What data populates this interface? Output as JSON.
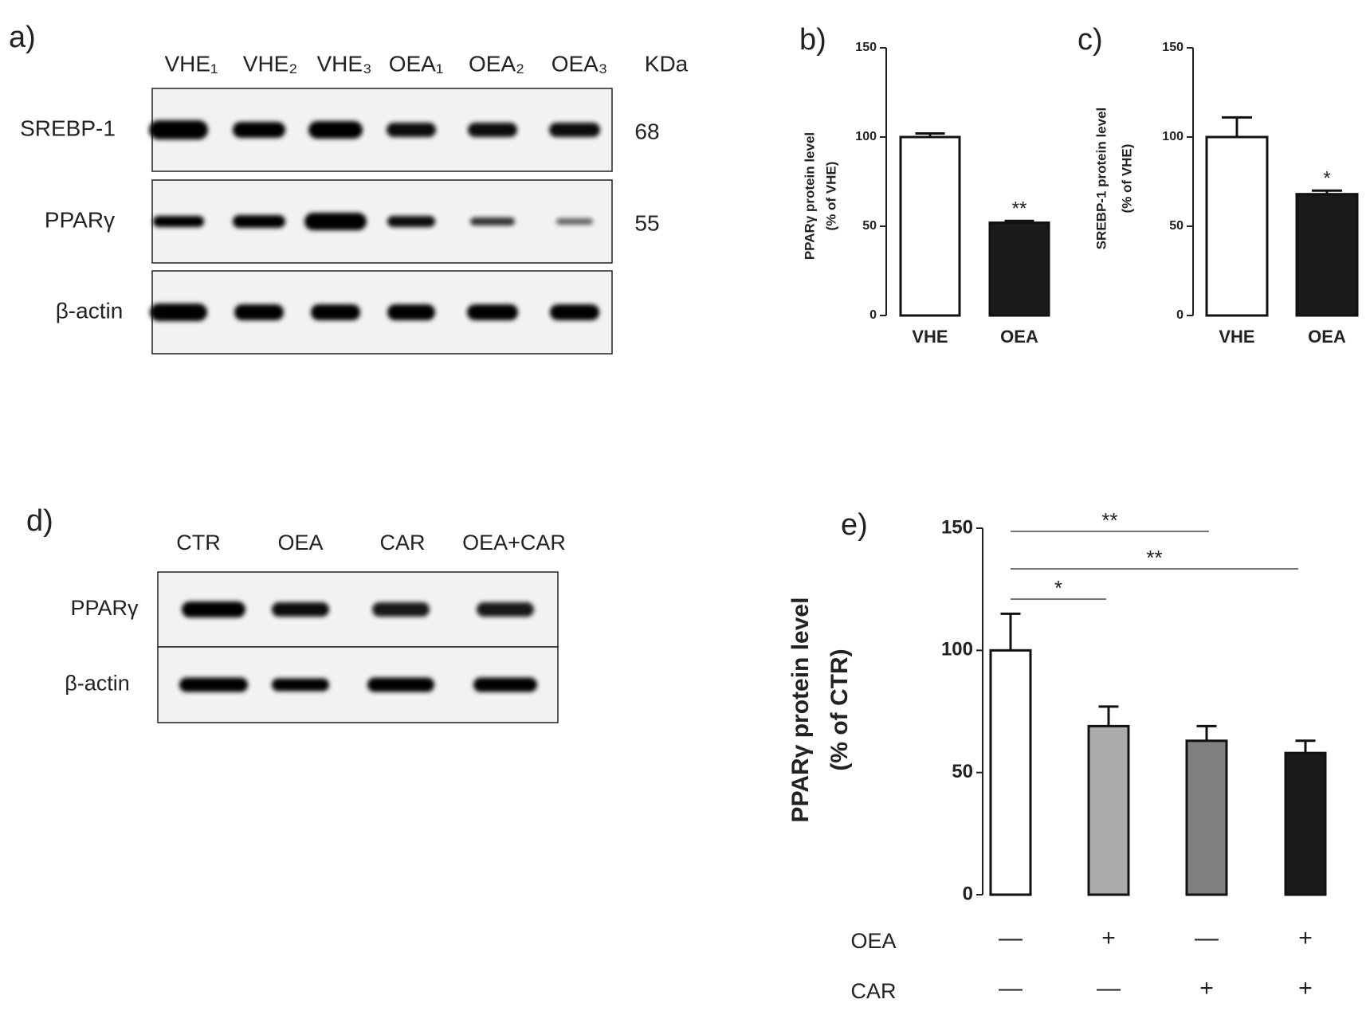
{
  "blots": [
    {
      "label": "a)",
      "lanes": [
        "VHE₁",
        "VHE₂",
        "VHE₃",
        "OEA₁",
        "OEA₂",
        "OEA₃"
      ],
      "unit": "KDa",
      "rows": [
        {
          "name": "SREBP-1",
          "kda": 68
        },
        {
          "name": "PPARγ",
          "kda": 55
        },
        {
          "name": "β-actin"
        }
      ]
    },
    {
      "label": "d)",
      "lanes": [
        "CTR",
        "OEA",
        "CAR",
        "OEA+CAR"
      ],
      "rows": [
        {
          "name": "PPARγ"
        },
        {
          "name": "β-actin"
        }
      ]
    }
  ],
  "chart_data": [
    {
      "type": "bar",
      "label": "b)",
      "ylabel": [
        "PPARγ protein level",
        "(% of VHE)"
      ],
      "categories": [
        "VHE",
        "OEA"
      ],
      "values": [
        100,
        52
      ],
      "errors": [
        2,
        1
      ],
      "colors": [
        "#ffffff",
        "#1a1a1a"
      ],
      "annotations": [
        null,
        "**"
      ],
      "ylim": [
        0,
        150
      ],
      "yticks": [
        0,
        50,
        100,
        150
      ]
    },
    {
      "type": "bar",
      "label": "c)",
      "ylabel": [
        "SREBP-1 protein level",
        "(% of VHE)"
      ],
      "categories": [
        "VHE",
        "OEA"
      ],
      "values": [
        100,
        68
      ],
      "errors": [
        11,
        2
      ],
      "colors": [
        "#ffffff",
        "#1a1a1a"
      ],
      "annotations": [
        null,
        "*"
      ],
      "ylim": [
        0,
        150
      ],
      "yticks": [
        0,
        50,
        100,
        150
      ]
    },
    {
      "type": "bar",
      "label": "e)",
      "ylabel": [
        "PPARγ protein level",
        "(% of CTR)"
      ],
      "categories": [
        null,
        null,
        null,
        null
      ],
      "values": [
        100,
        69,
        63,
        58
      ],
      "errors": [
        15,
        8,
        6,
        5
      ],
      "colors": [
        "#ffffff",
        "#aaaaaa",
        "#808080",
        "#1a1a1a"
      ],
      "significance": [
        "**",
        "**",
        "*"
      ],
      "treatments": [
        {
          "name": "OEA",
          "signs": [
            "—",
            "+",
            "—",
            "+"
          ]
        },
        {
          "name": "CAR",
          "signs": [
            "—",
            "—",
            "+",
            "+"
          ]
        }
      ],
      "ylim": [
        0,
        150
      ],
      "yticks": [
        0,
        50,
        100,
        150
      ]
    }
  ]
}
